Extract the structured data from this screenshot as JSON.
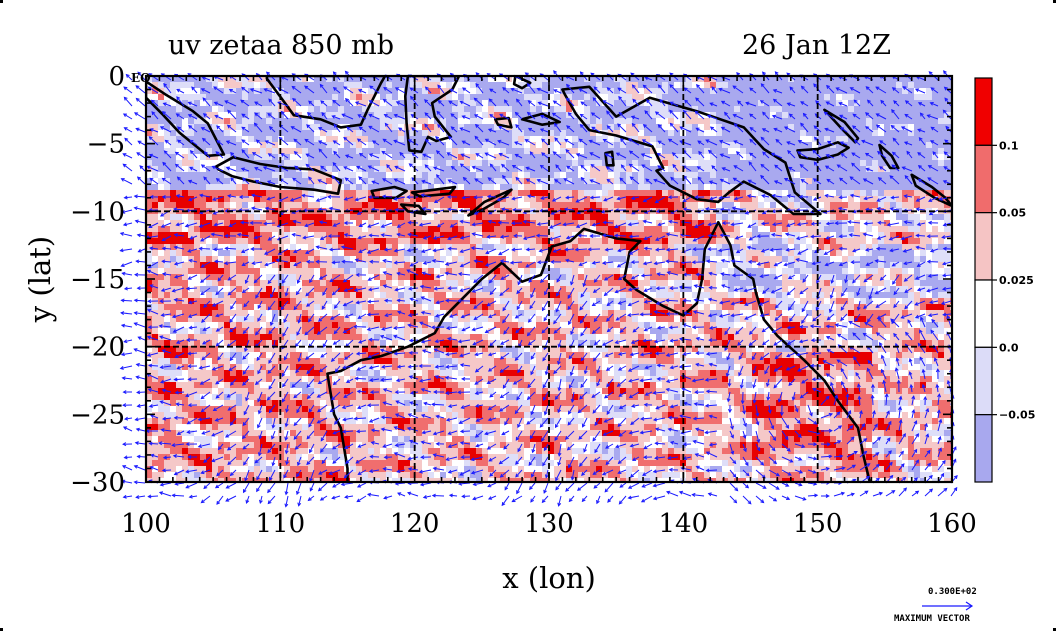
{
  "chart_data": {
    "type": "heatmap",
    "title_left": "uv zetaa 850 mb",
    "title_right": "26 Jan 12Z",
    "xlabel": "x (lon)",
    "ylabel": "y (lat)",
    "xlim": [
      100,
      160
    ],
    "ylim": [
      -30,
      0
    ],
    "x_ticks": [
      "100",
      "110",
      "120",
      "130",
      "140",
      "150",
      "160"
    ],
    "y_ticks": [
      "0",
      "−5",
      "−10",
      "−15",
      "−20",
      "−25",
      "−30"
    ],
    "eq_label": "EQ",
    "grid": true,
    "colorbar": {
      "labels": [
        "0.1",
        "0.05",
        "0.025",
        "0.0",
        "−0.05"
      ],
      "colors": [
        "#f00000",
        "#f06c6c",
        "#f5c4c4",
        "#ffffff",
        "#dcdcf8",
        "#a8a8ee"
      ]
    },
    "field_colors": {
      "strong_positive": "#e80000",
      "positive": "#f06e6e",
      "weak_positive": "#f5c8c8",
      "near_zero": "#ffffff",
      "weak_negative": "#dedef8",
      "negative": "#a9a9ef",
      "coastline": "#000000",
      "vectors": "#1a1aff",
      "grid": "#000000"
    },
    "vector_key": {
      "value": "0.300E+02",
      "label": "MAXIMUM VECTOR"
    }
  }
}
